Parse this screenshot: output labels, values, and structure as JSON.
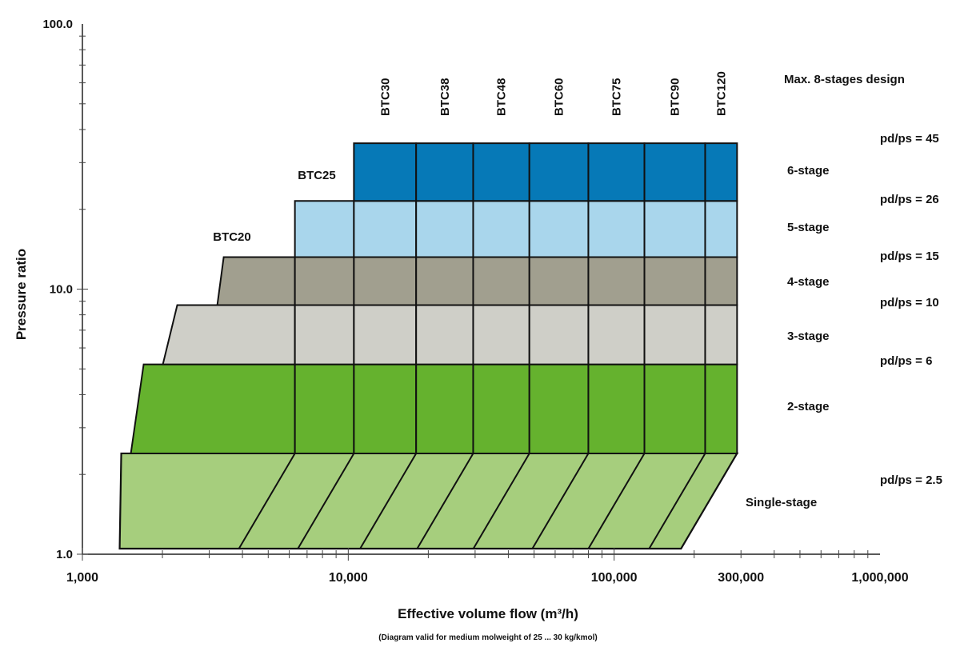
{
  "chart_data": {
    "type": "area",
    "title": "",
    "xlabel": "Effective volume flow (m³/h)",
    "ylabel": "Pressure ratio",
    "note": "(Diagram valid for medium molweight of 25 ... 30 kg/kmol)",
    "x_scale": "log",
    "y_scale": "log",
    "xlim": [
      1000,
      1000000
    ],
    "ylim": [
      1,
      100
    ],
    "x_ticks": [
      {
        "value": 1000,
        "label": "1,000"
      },
      {
        "value": 10000,
        "label": "10,000"
      },
      {
        "value": 100000,
        "label": "100,000"
      },
      {
        "value": 300000,
        "label": "300,000"
      },
      {
        "value": 1000000,
        "label": "1,000,000"
      }
    ],
    "y_ticks": [
      {
        "value": 1,
        "label": "1.0"
      },
      {
        "value": 10,
        "label": "10.0"
      },
      {
        "value": 100,
        "label": "100.0"
      }
    ],
    "grid": false,
    "models": [
      {
        "label": "BTC20",
        "x_start": 1400
      },
      {
        "label": "BTC25",
        "x_start": 6300
      },
      {
        "label": "BTC30",
        "x_start": 10500
      },
      {
        "label": "BTC38",
        "x_start": 18000
      },
      {
        "label": "BTC48",
        "x_start": 29500
      },
      {
        "label": "BTC60",
        "x_start": 48000
      },
      {
        "label": "BTC75",
        "x_start": 80000
      },
      {
        "label": "BTC90",
        "x_start": 130000
      },
      {
        "label": "BTC120",
        "x_start": 220000
      }
    ],
    "columns_x_end": 290000,
    "stages": [
      {
        "name": "Single-stage",
        "color": "#a6ce7d",
        "y_range": [
          1.05,
          2.4
        ]
      },
      {
        "name": "2-stage",
        "color": "#65b22e",
        "y_range": [
          2.4,
          5.2
        ]
      },
      {
        "name": "3-stage",
        "color": "#cfcfc8",
        "y_range": [
          5.2,
          8.7
        ]
      },
      {
        "name": "4-stage",
        "color": "#a19f8f",
        "y_range": [
          8.7,
          13.2
        ]
      },
      {
        "name": "5-stage",
        "color": "#a9d6ec",
        "y_range": [
          13.2,
          21.5
        ]
      },
      {
        "name": "6-stage",
        "color": "#0679b7",
        "y_range": [
          21.5,
          35.5
        ]
      }
    ],
    "pressure_limits": [
      {
        "label": "pd/ps = 45",
        "value": 45
      },
      {
        "label": "pd/ps = 26",
        "value": 26
      },
      {
        "label": "pd/ps = 15",
        "value": 15
      },
      {
        "label": "pd/ps = 10",
        "value": 10
      },
      {
        "label": "pd/ps = 6",
        "value": 6
      },
      {
        "label": "pd/ps = 2.5",
        "value": 2.5
      }
    ],
    "design_note": "Max. 8-stages design"
  }
}
